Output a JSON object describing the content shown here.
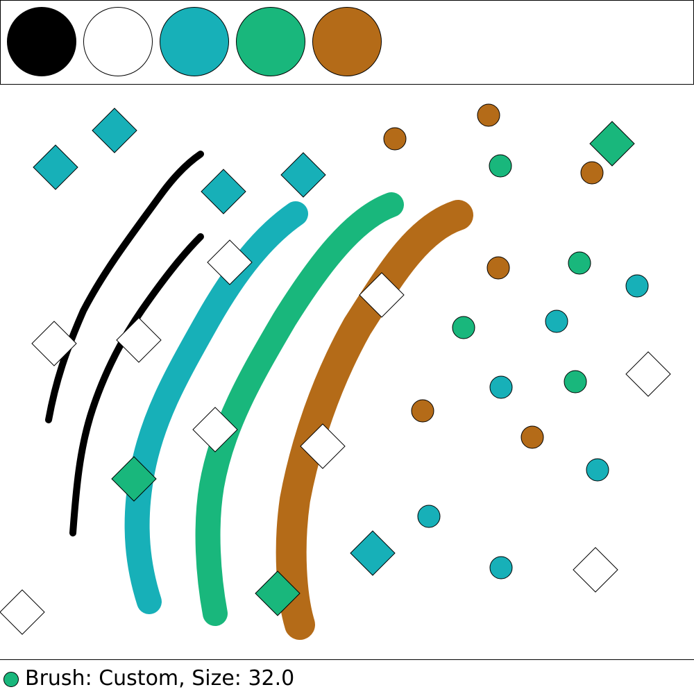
{
  "palette": {
    "colors": [
      {
        "name": "black",
        "hex": "#000000"
      },
      {
        "name": "white",
        "hex": "#ffffff"
      },
      {
        "name": "teal",
        "hex": "#17b0b8"
      },
      {
        "name": "green",
        "hex": "#19b77c"
      },
      {
        "name": "brown",
        "hex": "#b46b18"
      }
    ]
  },
  "status": {
    "text": "Brush: Custom, Size: 32.0",
    "brush_color": "#19b77c"
  },
  "canvas": {
    "strokes": [
      {
        "color": "black",
        "width": 10
      },
      {
        "color": "black",
        "width": 10
      },
      {
        "color": "teal",
        "width": 36
      },
      {
        "color": "green",
        "width": 36
      },
      {
        "color": "brown",
        "width": 44
      }
    ],
    "shapes": [
      {
        "kind": "diamond",
        "color": "teal"
      },
      {
        "kind": "diamond",
        "color": "teal"
      },
      {
        "kind": "diamond",
        "color": "teal"
      },
      {
        "kind": "diamond",
        "color": "teal"
      },
      {
        "kind": "diamond",
        "color": "green"
      },
      {
        "kind": "diamond",
        "color": "green"
      },
      {
        "kind": "diamond",
        "color": "green"
      },
      {
        "kind": "diamond",
        "color": "teal"
      },
      {
        "kind": "diamond",
        "color": "white"
      },
      {
        "kind": "diamond",
        "color": "white"
      },
      {
        "kind": "diamond",
        "color": "white"
      },
      {
        "kind": "diamond",
        "color": "white"
      },
      {
        "kind": "diamond",
        "color": "white"
      },
      {
        "kind": "diamond",
        "color": "white"
      },
      {
        "kind": "diamond",
        "color": "white"
      },
      {
        "kind": "diamond",
        "color": "white"
      },
      {
        "kind": "diamond",
        "color": "white"
      },
      {
        "kind": "circle",
        "color": "brown"
      },
      {
        "kind": "circle",
        "color": "brown"
      },
      {
        "kind": "circle",
        "color": "brown"
      },
      {
        "kind": "circle",
        "color": "brown"
      },
      {
        "kind": "circle",
        "color": "brown"
      },
      {
        "kind": "circle",
        "color": "brown"
      },
      {
        "kind": "circle",
        "color": "green"
      },
      {
        "kind": "circle",
        "color": "green"
      },
      {
        "kind": "circle",
        "color": "green"
      },
      {
        "kind": "circle",
        "color": "green"
      },
      {
        "kind": "circle",
        "color": "teal"
      },
      {
        "kind": "circle",
        "color": "teal"
      },
      {
        "kind": "circle",
        "color": "teal"
      },
      {
        "kind": "circle",
        "color": "teal"
      },
      {
        "kind": "circle",
        "color": "teal"
      },
      {
        "kind": "circle",
        "color": "teal"
      }
    ]
  }
}
